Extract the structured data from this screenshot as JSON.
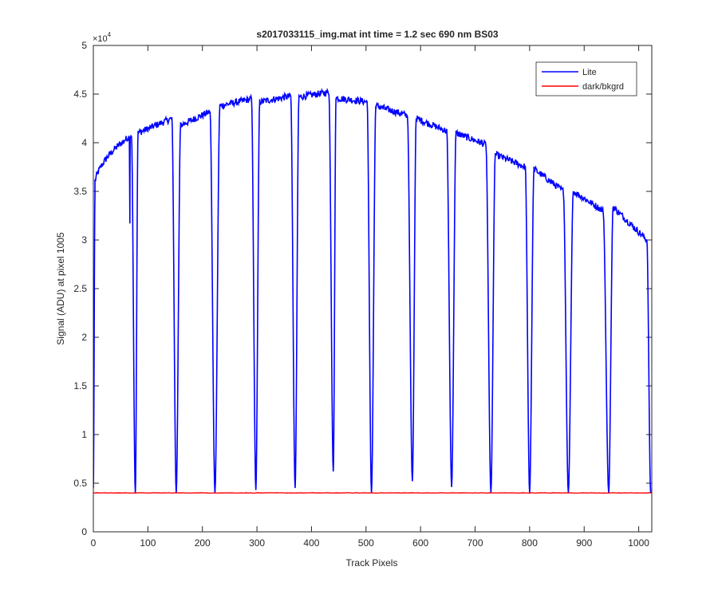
{
  "chart_data": {
    "type": "line",
    "title": "s2017033115_img.mat int time = 1.2 sec  690 nm BS03",
    "xlabel": "Track Pixels",
    "ylabel": "Signal (ADU) at pixel 1005",
    "y_exponent_label": "×10",
    "y_exponent_power": "4",
    "xlim": [
      0,
      1024
    ],
    "ylim": [
      0,
      5
    ],
    "x_ticks": [
      0,
      100,
      200,
      300,
      400,
      500,
      600,
      700,
      800,
      900,
      1000
    ],
    "x_tick_labels": [
      "0",
      "100",
      "200",
      "300",
      "400",
      "500",
      "600",
      "700",
      "800",
      "900",
      "1000"
    ],
    "y_ticks": [
      0,
      0.5,
      1,
      1.5,
      2,
      2.5,
      3,
      3.5,
      4,
      4.5,
      5
    ],
    "y_tick_labels": [
      "0",
      "0.5",
      "1",
      "1.5",
      "2",
      "2.5",
      "3",
      "3.5",
      "4",
      "4.5",
      "5"
    ],
    "legend_position": "top-right",
    "series": [
      {
        "name": "Lite",
        "color": "#0000ff",
        "y_units": "x1e4 ADU",
        "segments": [
          {
            "start": 0,
            "end": 70,
            "y0": 3.45,
            "y1": 4.08
          },
          {
            "start": 82,
            "end": 144,
            "y0": 4.1,
            "y1": 4.25
          },
          {
            "start": 160,
            "end": 214,
            "y0": 4.18,
            "y1": 4.32
          },
          {
            "start": 232,
            "end": 290,
            "y0": 4.38,
            "y1": 4.45
          },
          {
            "start": 305,
            "end": 362,
            "y0": 4.42,
            "y1": 4.48
          },
          {
            "start": 377,
            "end": 432,
            "y0": 4.47,
            "y1": 4.52
          },
          {
            "start": 445,
            "end": 502,
            "y0": 4.46,
            "y1": 4.42
          },
          {
            "start": 518,
            "end": 576,
            "y0": 4.38,
            "y1": 4.28
          },
          {
            "start": 592,
            "end": 648,
            "y0": 4.25,
            "y1": 4.12
          },
          {
            "start": 665,
            "end": 720,
            "y0": 4.1,
            "y1": 3.98
          },
          {
            "start": 737,
            "end": 792,
            "y0": 3.88,
            "y1": 3.75
          },
          {
            "start": 808,
            "end": 862,
            "y0": 3.73,
            "y1": 3.5
          },
          {
            "start": 880,
            "end": 935,
            "y0": 3.5,
            "y1": 3.3
          },
          {
            "start": 953,
            "end": 1015,
            "y0": 3.34,
            "y1": 3.0
          }
        ],
        "dip_minima": [
          {
            "x": 77,
            "y": 0.4
          },
          {
            "x": 152,
            "y": 0.4
          },
          {
            "x": 223,
            "y": 0.4
          },
          {
            "x": 298,
            "y": 0.43
          },
          {
            "x": 370,
            "y": 0.45
          },
          {
            "x": 440,
            "y": 0.62
          },
          {
            "x": 510,
            "y": 0.4
          },
          {
            "x": 585,
            "y": 0.52
          },
          {
            "x": 657,
            "y": 0.46
          },
          {
            "x": 729,
            "y": 0.4
          },
          {
            "x": 800,
            "y": 0.4
          },
          {
            "x": 871,
            "y": 0.4
          },
          {
            "x": 945,
            "y": 0.4
          },
          {
            "x": 1022,
            "y": 0.4
          }
        ],
        "spike": {
          "x": 67,
          "y": 3.63,
          "low": 3.17
        }
      },
      {
        "name": "dark/bkgrd",
        "color": "#ff0000",
        "value": 0.4
      }
    ]
  }
}
